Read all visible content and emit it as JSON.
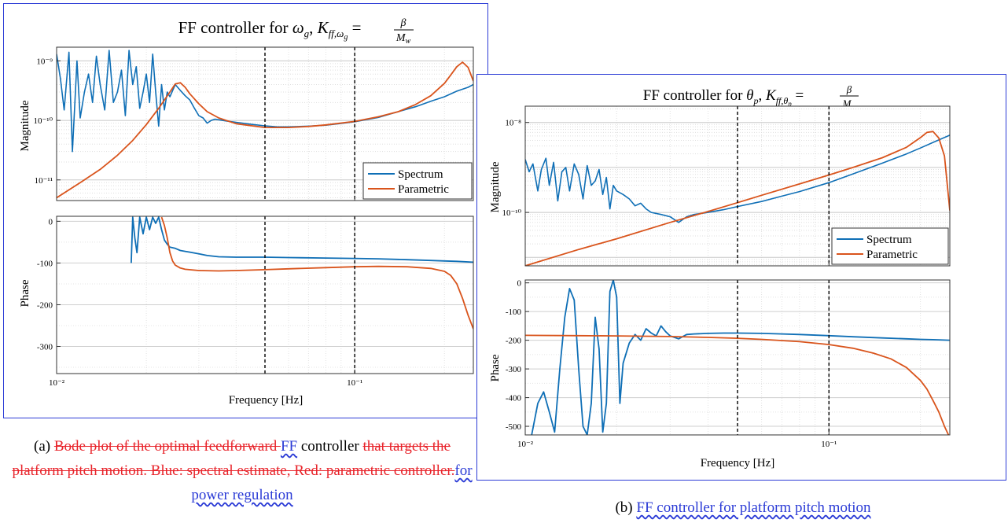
{
  "colors": {
    "spectrum": "#0f6fb6",
    "parametric": "#d9541c",
    "frame": "#2b3bd6",
    "deleted": "#e8232a",
    "inserted": "#2b3bd6"
  },
  "chart_data": [
    {
      "type": "line",
      "title": "FF controller for ω_g, K_ff,ω_g = β/M_w",
      "title_text": "FF controller for ",
      "title_var": "ω",
      "title_var_sub": "g",
      "title_k_sub": "ff,ω",
      "title_k_subsub": "g",
      "panels": [
        {
          "name": "magnitude",
          "ylabel": "Magnitude",
          "yscale": "log",
          "ylim": [
            4.5e-12,
            1.7e-09
          ],
          "yticks": [
            {
              "v": 1e-09,
              "label": "10⁻⁹"
            },
            {
              "v": 1e-10,
              "label": "10⁻¹⁰"
            },
            {
              "v": 1e-11,
              "label": "10⁻¹¹"
            }
          ],
          "series": [
            {
              "name": "Spectrum",
              "color": "#0f6fb6",
              "x": [
                0.01,
                0.0103,
                0.0106,
                0.011,
                0.0113,
                0.0117,
                0.012,
                0.0124,
                0.0128,
                0.0132,
                0.0136,
                0.014,
                0.0145,
                0.015,
                0.0155,
                0.016,
                0.0165,
                0.017,
                0.0175,
                0.018,
                0.0185,
                0.019,
                0.0195,
                0.02,
                0.0205,
                0.021,
                0.0215,
                0.022,
                0.0225,
                0.023,
                0.0235,
                0.024,
                0.025,
                0.026,
                0.027,
                0.028,
                0.029,
                0.03,
                0.031,
                0.032,
                0.033,
                0.034,
                0.036,
                0.038,
                0.04,
                0.045,
                0.05,
                0.055,
                0.06,
                0.07,
                0.08,
                0.09,
                0.1,
                0.12,
                0.14,
                0.16,
                0.18,
                0.2,
                0.22,
                0.24,
                0.25
              ],
              "y": [
                1.3e-09,
                5e-10,
                1.5e-10,
                1.4e-09,
                3e-11,
                1e-09,
                1.1e-10,
                3e-10,
                6e-10,
                2e-10,
                1.2e-09,
                4e-10,
                1.5e-10,
                1.5e-09,
                2e-10,
                3e-10,
                7e-10,
                1.2e-10,
                1.5e-09,
                4e-10,
                8e-10,
                1.6e-10,
                3e-10,
                6e-10,
                2e-10,
                1.3e-09,
                3e-10,
                8e-11,
                4e-10,
                1.5e-10,
                3e-10,
                2.5e-10,
                4e-10,
                3.2e-10,
                2.6e-10,
                2.2e-10,
                1.6e-10,
                1.2e-10,
                1.1e-10,
                9e-11,
                1e-10,
                1.05e-10,
                1e-10,
                9.6e-11,
                9.3e-11,
                8.6e-11,
                8.1e-11,
                7.8e-11,
                7.8e-11,
                8e-11,
                8.3e-11,
                8.9e-11,
                9.5e-11,
                1.12e-10,
                1.4e-10,
                1.7e-10,
                2.1e-10,
                2.5e-10,
                3.1e-10,
                3.6e-10,
                4e-10
              ]
            },
            {
              "name": "Parametric",
              "color": "#d9541c",
              "x": [
                0.01,
                0.012,
                0.014,
                0.016,
                0.018,
                0.02,
                0.022,
                0.024,
                0.025,
                0.026,
                0.027,
                0.028,
                0.03,
                0.032,
                0.035,
                0.04,
                0.05,
                0.06,
                0.07,
                0.08,
                0.1,
                0.12,
                0.14,
                0.16,
                0.18,
                0.2,
                0.21,
                0.22,
                0.23,
                0.24,
                0.25
              ],
              "y": [
                5e-12,
                9e-12,
                1.5e-11,
                2.6e-11,
                4.6e-11,
                8.5e-11,
                1.6e-10,
                3e-10,
                4.1e-10,
                4.3e-10,
                3.6e-10,
                2.8e-10,
                1.9e-10,
                1.4e-10,
                1.1e-10,
                8.8e-11,
                7.6e-11,
                7.6e-11,
                7.9e-11,
                8.4e-11,
                9.6e-11,
                1.15e-10,
                1.4e-10,
                1.85e-10,
                2.6e-10,
                4.2e-10,
                5.8e-10,
                8e-10,
                9.5e-10,
                7.8e-10,
                4.6e-10
              ]
            }
          ],
          "legend": {
            "position": "bottom-right",
            "entries": [
              "Spectrum",
              "Parametric"
            ]
          }
        },
        {
          "name": "phase",
          "ylabel": "Phase",
          "yscale": "linear",
          "ylim": [
            -365,
            12
          ],
          "yticks": [
            {
              "v": 0,
              "label": "0"
            },
            {
              "v": -100,
              "label": "-100"
            },
            {
              "v": -200,
              "label": "-200"
            },
            {
              "v": -300,
              "label": "-300"
            }
          ],
          "series": [
            {
              "name": "Spectrum",
              "color": "#0f6fb6",
              "x": [
                0.0178,
                0.018,
                0.0183,
                0.0186,
                0.019,
                0.0195,
                0.02,
                0.0205,
                0.021,
                0.0215,
                0.022,
                0.0225,
                0.023,
                0.0235,
                0.024,
                0.025,
                0.026,
                0.027,
                0.028,
                0.03,
                0.032,
                0.035,
                0.04,
                0.05,
                0.06,
                0.08,
                0.1,
                0.12,
                0.15,
                0.18,
                0.2,
                0.22,
                0.25
              ],
              "y": [
                -100,
                10,
                -40,
                -75,
                10,
                -30,
                10,
                -20,
                10,
                -5,
                10,
                -20,
                -45,
                -55,
                -62,
                -65,
                -70,
                -72,
                -74,
                -78,
                -82,
                -85,
                -86,
                -86,
                -87,
                -88,
                -89,
                -90,
                -92,
                -94,
                -95,
                -96,
                -98
              ]
            },
            {
              "name": "Parametric",
              "color": "#d9541c",
              "x": [
                0.0225,
                0.023,
                0.0235,
                0.024,
                0.0245,
                0.025,
                0.026,
                0.027,
                0.03,
                0.035,
                0.04,
                0.05,
                0.06,
                0.08,
                0.1,
                0.12,
                0.15,
                0.18,
                0.2,
                0.21,
                0.22,
                0.23,
                0.24,
                0.25
              ],
              "y": [
                10,
                -10,
                -40,
                -75,
                -95,
                -105,
                -112,
                -115,
                -118,
                -119,
                -118,
                -116,
                -114,
                -111,
                -109,
                -108,
                -109,
                -113,
                -120,
                -130,
                -150,
                -185,
                -225,
                -258
              ]
            }
          ]
        }
      ],
      "xscale": "log",
      "xlim": [
        0.01,
        0.25
      ],
      "xticks": [
        {
          "v": 0.01,
          "label": "10⁻²"
        },
        {
          "v": 0.1,
          "label": "10⁻¹"
        }
      ],
      "xlabel": "Frequency [Hz]",
      "vlines": [
        0.05,
        0.1
      ],
      "grid": true
    },
    {
      "type": "line",
      "title": "FF controller for θ_p, K_ff,θ_p = β/M_w",
      "title_text": "FF controller for ",
      "title_var": "θ",
      "title_var_sub": "p",
      "title_k_sub": "ff,θ",
      "title_k_subsub": "p",
      "panels": [
        {
          "name": "magnitude",
          "ylabel": "Magnitude",
          "yscale": "log",
          "ylim": [
            6.5e-12,
            2.3e-08
          ],
          "yticks": [
            {
              "v": 1e-08,
              "label": "10⁻⁸"
            },
            {
              "v": 1e-10,
              "label": "10⁻¹⁰"
            }
          ],
          "series": [
            {
              "name": "Spectrum",
              "color": "#0f6fb6",
              "x": [
                0.01,
                0.0103,
                0.0106,
                0.011,
                0.0113,
                0.0117,
                0.012,
                0.0124,
                0.0128,
                0.0132,
                0.0136,
                0.014,
                0.0145,
                0.015,
                0.0155,
                0.016,
                0.0165,
                0.017,
                0.0175,
                0.018,
                0.0185,
                0.019,
                0.0195,
                0.02,
                0.021,
                0.022,
                0.023,
                0.024,
                0.025,
                0.026,
                0.028,
                0.03,
                0.032,
                0.034,
                0.036,
                0.04,
                0.045,
                0.05,
                0.06,
                0.07,
                0.08,
                0.1,
                0.12,
                0.15,
                0.18,
                0.2,
                0.22,
                0.25
              ],
              "y": [
                1.5e-09,
                8e-10,
                1.2e-09,
                3e-10,
                9e-10,
                1.6e-09,
                4e-10,
                1.3e-09,
                1.8e-10,
                8e-10,
                1e-09,
                3e-10,
                1.2e-09,
                7e-10,
                2e-10,
                1.1e-09,
                4e-10,
                5e-10,
                9e-10,
                2.5e-10,
                6e-10,
                1.2e-10,
                4e-10,
                3e-10,
                2.5e-10,
                2e-10,
                1.4e-10,
                1.6e-10,
                1.2e-10,
                1e-10,
                9e-11,
                8e-11,
                6e-11,
                8e-11,
                9e-11,
                1e-10,
                1.15e-10,
                1.35e-10,
                1.75e-10,
                2.3e-10,
                2.9e-10,
                4.6e-10,
                7.2e-10,
                1.25e-09,
                2e-09,
                2.7e-09,
                3.6e-09,
                5.2e-09
              ]
            },
            {
              "name": "Parametric",
              "color": "#d9541c",
              "x": [
                0.01,
                0.015,
                0.02,
                0.03,
                0.04,
                0.05,
                0.06,
                0.08,
                0.1,
                0.12,
                0.15,
                0.18,
                0.2,
                0.21,
                0.22,
                0.23,
                0.24,
                0.25
              ],
              "y": [
                6.5e-12,
                1.5e-11,
                2.6e-11,
                6e-11,
                1.05e-10,
                1.65e-10,
                2.4e-10,
                4.3e-10,
                6.8e-10,
                1e-09,
                1.65e-09,
                2.8e-09,
                4.6e-09,
                6e-09,
                6.3e-09,
                4.5e-09,
                1.8e-09,
                1.1e-10
              ]
            }
          ],
          "legend": {
            "position": "bottom-right",
            "entries": [
              "Spectrum",
              "Parametric"
            ]
          }
        },
        {
          "name": "phase",
          "ylabel": "Phase",
          "yscale": "linear",
          "ylim": [
            -530,
            10
          ],
          "yticks": [
            {
              "v": 0,
              "label": "0"
            },
            {
              "v": -100,
              "label": "-100"
            },
            {
              "v": -200,
              "label": "-200"
            },
            {
              "v": -300,
              "label": "-300"
            },
            {
              "v": -400,
              "label": "-400"
            },
            {
              "v": -500,
              "label": "-500"
            }
          ],
          "series": [
            {
              "name": "Spectrum",
              "color": "#0f6fb6",
              "x": [
                0.0105,
                0.011,
                0.0115,
                0.012,
                0.0125,
                0.013,
                0.0135,
                0.014,
                0.0145,
                0.015,
                0.0155,
                0.016,
                0.0165,
                0.017,
                0.0175,
                0.018,
                0.0185,
                0.019,
                0.0195,
                0.02,
                0.0205,
                0.021,
                0.022,
                0.023,
                0.024,
                0.025,
                0.026,
                0.027,
                0.028,
                0.029,
                0.03,
                0.031,
                0.032,
                0.034,
                0.036,
                0.04,
                0.045,
                0.05,
                0.06,
                0.07,
                0.08,
                0.1,
                0.12,
                0.15,
                0.18,
                0.2,
                0.22,
                0.25
              ],
              "y": [
                -530,
                -420,
                -380,
                -450,
                -520,
                -300,
                -120,
                -20,
                -60,
                -300,
                -500,
                -530,
                -420,
                -120,
                -230,
                -520,
                -420,
                -30,
                10,
                -50,
                -420,
                -280,
                -210,
                -180,
                -200,
                -160,
                -175,
                -185,
                -150,
                -170,
                -185,
                -190,
                -195,
                -180,
                -178,
                -176,
                -175,
                -175,
                -176,
                -178,
                -180,
                -184,
                -188,
                -192,
                -195,
                -197,
                -198,
                -200
              ]
            },
            {
              "name": "Parametric",
              "color": "#d9541c",
              "x": [
                0.01,
                0.015,
                0.02,
                0.03,
                0.04,
                0.05,
                0.06,
                0.08,
                0.1,
                0.12,
                0.14,
                0.16,
                0.18,
                0.2,
                0.21,
                0.22,
                0.23,
                0.24,
                0.25
              ],
              "y": [
                -183,
                -184,
                -185,
                -187,
                -190,
                -193,
                -197,
                -205,
                -215,
                -228,
                -245,
                -265,
                -295,
                -340,
                -370,
                -410,
                -450,
                -500,
                -540
              ]
            }
          ]
        }
      ],
      "xscale": "log",
      "xlim": [
        0.01,
        0.25
      ],
      "xticks": [
        {
          "v": 0.01,
          "label": "10⁻²"
        },
        {
          "v": 0.1,
          "label": "10⁻¹"
        }
      ],
      "xlabel": "Frequency [Hz]",
      "vlines": [
        0.05,
        0.1
      ],
      "grid": true
    }
  ],
  "captions": {
    "a": {
      "label": "(a) ",
      "deleted_1": "Bode plot of the optimal feedforward ",
      "inserted_1": "FF",
      "plain_1": " controller ",
      "deleted_2": "that targets the platform pitch motion. Blue: spectral estimate, Red: parametric controller.",
      "inserted_2": "for power regulation"
    },
    "b": {
      "label": "(b) ",
      "inserted_1": "FF controller for platform pitch motion"
    }
  }
}
